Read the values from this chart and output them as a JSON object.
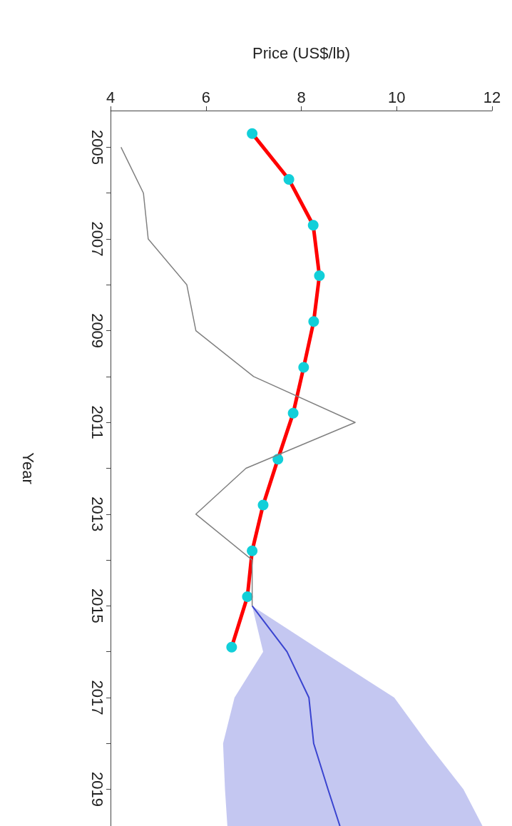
{
  "chart_data": {
    "type": "line",
    "orientation": "horizontal",
    "xlabel": "Price (US$/lb)",
    "ylabel": "Year",
    "xlim": [
      4,
      12
    ],
    "xticks": [
      4,
      6,
      8,
      10,
      12
    ],
    "ylim": [
      2019.8,
      2004.2
    ],
    "yticks": [
      2005,
      {
        "value": 2006,
        "label": null
      },
      2007,
      {
        "value": 2008,
        "label": null
      },
      2009,
      {
        "value": 2010,
        "label": null
      },
      2011,
      {
        "value": 2012,
        "label": null
      },
      2013,
      {
        "value": 2014,
        "label": null
      },
      2015,
      {
        "value": 2016,
        "label": null
      },
      2017,
      {
        "value": 2018,
        "label": null
      },
      2019
    ],
    "grid": false,
    "series": [
      {
        "color": "#808080",
        "marker": "none",
        "line_style": "solid",
        "x": [
          2005,
          2006,
          2007,
          2008,
          2009,
          2010,
          2011,
          2012,
          2013,
          2014,
          2015
        ],
        "values": [
          4.22,
          4.69,
          4.79,
          5.6,
          5.79,
          7.0,
          9.13,
          6.84,
          5.79,
          6.97,
          6.97
        ]
      },
      {
        "color": "#3a44d0",
        "marker": "none",
        "line_style": "solid",
        "x": [
          2015,
          2016,
          2017,
          2018,
          2019,
          2019.8
        ],
        "values": [
          6.97,
          7.7,
          8.16,
          8.26,
          8.56,
          8.81
        ],
        "lower": [
          6.97,
          7.2,
          6.6,
          6.36,
          6.4,
          6.45
        ],
        "upper": [
          6.97,
          8.45,
          9.95,
          10.65,
          11.4,
          11.8
        ]
      },
      {
        "color": "#ff0000",
        "marker": "circle",
        "line_style": "solid",
        "x": [
          2004.7,
          2005.7,
          2006.7,
          2007.8,
          2008.8,
          2009.8,
          2010.8,
          2011.8,
          2012.8,
          2013.8,
          2014.8,
          2015.9
        ],
        "values": [
          6.97,
          7.74,
          8.25,
          8.38,
          8.26,
          8.05,
          7.83,
          7.51,
          7.2,
          6.97,
          6.87,
          6.54
        ]
      }
    ]
  }
}
